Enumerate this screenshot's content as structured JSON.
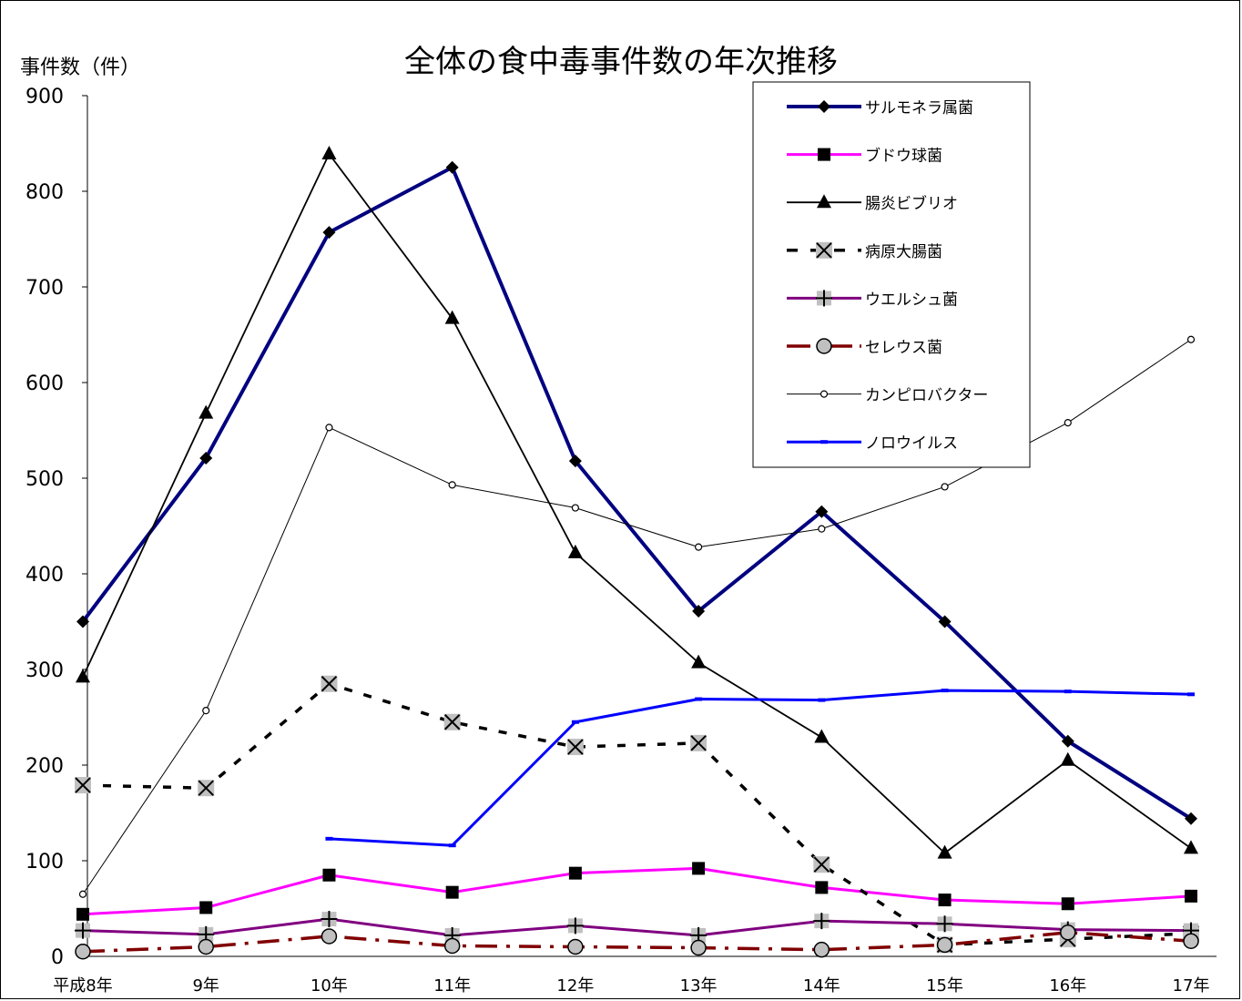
{
  "chart_data": {
    "type": "line",
    "title": "全体の食中毒事件数の年次推移",
    "ylabel": "事件数（件）",
    "xlabel": "",
    "ylim": [
      0,
      900
    ],
    "yticks": [
      0,
      100,
      200,
      300,
      400,
      500,
      600,
      700,
      800,
      900
    ],
    "categories": [
      "平成8年",
      "9年",
      "10年",
      "11年",
      "12年",
      "13年",
      "14年",
      "15年",
      "16年",
      "17年"
    ],
    "grid": false,
    "legend_position": "top-right",
    "series": [
      {
        "name": "サルモネラ属菌",
        "color": "#000080",
        "style": "thick",
        "marker": "diamond",
        "values": [
          350,
          521,
          757,
          825,
          518,
          361,
          465,
          350,
          225,
          144
        ]
      },
      {
        "name": "ブドウ球菌",
        "color": "#ff00ff",
        "style": "solid",
        "marker": "square",
        "values": [
          44,
          51,
          85,
          67,
          87,
          92,
          72,
          59,
          55,
          63
        ]
      },
      {
        "name": "腸炎ビブリオ",
        "color": "#000000",
        "style": "thin",
        "marker": "triangle",
        "values": [
          292,
          568,
          839,
          667,
          422,
          307,
          229,
          108,
          205,
          113
        ]
      },
      {
        "name": "病原大腸菌",
        "color": "#000000",
        "style": "dashed",
        "marker": "x",
        "values": [
          179,
          176,
          285,
          245,
          219,
          223,
          96,
          12,
          18,
          24
        ]
      },
      {
        "name": "ウエルシュ菌",
        "color": "#800080",
        "style": "solid",
        "marker": "plus",
        "values": [
          27,
          23,
          39,
          22,
          32,
          22,
          37,
          34,
          28,
          27
        ]
      },
      {
        "name": "セレウス菌",
        "color": "#800000",
        "style": "dashdot",
        "marker": "circle",
        "values": [
          5,
          10,
          21,
          11,
          10,
          9,
          7,
          12,
          25,
          16
        ]
      },
      {
        "name": "カンピロバクター",
        "color": "#000000",
        "style": "hair",
        "marker": "smallcircle",
        "values": [
          65,
          257,
          553,
          493,
          469,
          428,
          447,
          491,
          558,
          645
        ]
      },
      {
        "name": "ノロウイルス",
        "color": "#0000ff",
        "style": "solid",
        "marker": "dash",
        "values": [
          null,
          null,
          123,
          116,
          245,
          269,
          268,
          278,
          277,
          274
        ]
      }
    ]
  }
}
